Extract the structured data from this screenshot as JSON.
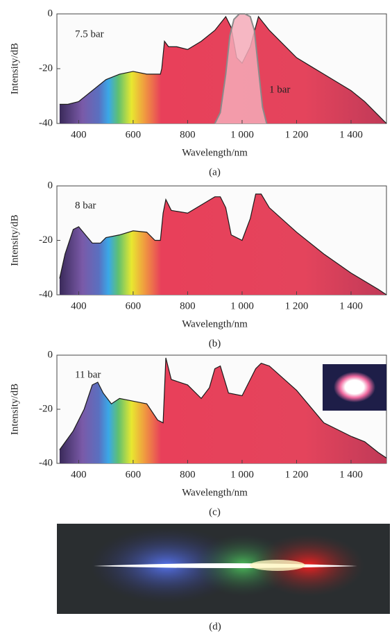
{
  "chart_data": [
    {
      "type": "area",
      "ylabel": "Intensity/dB",
      "xlabel": "Wavelength/nm",
      "caption": "(a)",
      "xlim": [
        320,
        1530
      ],
      "ylim": [
        -40,
        0
      ],
      "xticks": [
        400,
        600,
        800,
        {
          "value": 1000,
          "label": "1 000"
        },
        {
          "value": 1200,
          "label": "1 200"
        },
        {
          "value": 1400,
          "label": "1 400"
        }
      ],
      "yticks": [
        -40,
        -20,
        0
      ],
      "series": [
        {
          "name": "7.5 bar",
          "color": "#1a1a1a",
          "x": [
            330,
            360,
            400,
            450,
            500,
            550,
            600,
            650,
            700,
            705,
            715,
            730,
            760,
            800,
            850,
            900,
            940,
            960,
            980,
            1000,
            1030,
            1060,
            1100,
            1150,
            1200,
            1250,
            1300,
            1350,
            1400,
            1450,
            1500,
            1530
          ],
          "values": [
            -33,
            -33,
            -32,
            -28,
            -24,
            -22,
            -21,
            -22,
            -22,
            -20,
            -10,
            -12,
            -12,
            -13,
            -10,
            -6,
            -1,
            -5,
            -16,
            -18,
            -12,
            -1,
            -6,
            -11,
            -16,
            -19,
            -22,
            -25,
            -28,
            -32,
            -37,
            -40
          ]
        },
        {
          "name": "1 bar",
          "color": "#8a8a8a",
          "x": [
            900,
            920,
            940,
            955,
            970,
            990,
            1010,
            1030,
            1045,
            1060,
            1075,
            1090
          ],
          "values": [
            -40,
            -36,
            -22,
            -8,
            -2,
            0,
            0,
            -1,
            -6,
            -20,
            -34,
            -40
          ]
        }
      ]
    },
    {
      "type": "area",
      "ylabel": "Intensity/dB",
      "xlabel": "Wavelength/nm",
      "caption": "(b)",
      "xlim": [
        320,
        1530
      ],
      "ylim": [
        -40,
        0
      ],
      "xticks": [
        400,
        600,
        800,
        {
          "value": 1000,
          "label": "1 000"
        },
        {
          "value": 1200,
          "label": "1 200"
        },
        {
          "value": 1400,
          "label": "1 400"
        }
      ],
      "yticks": [
        -40,
        -20,
        0
      ],
      "series": [
        {
          "name": "8 bar",
          "color": "#1a1a1a",
          "x": [
            330,
            350,
            380,
            400,
            450,
            480,
            500,
            550,
            600,
            650,
            680,
            700,
            710,
            720,
            740,
            800,
            850,
            900,
            920,
            940,
            960,
            1000,
            1030,
            1050,
            1070,
            1100,
            1200,
            1300,
            1400,
            1500,
            1530
          ],
          "values": [
            -34,
            -25,
            -16,
            -15,
            -21,
            -21,
            -19,
            -18,
            -16.5,
            -17,
            -20,
            -20,
            -10,
            -5,
            -9,
            -10,
            -7,
            -4,
            -4,
            -8,
            -18,
            -20,
            -12,
            -3,
            -3,
            -8,
            -17,
            -25,
            -32,
            -38,
            -40
          ]
        }
      ]
    },
    {
      "type": "area",
      "ylabel": "Intensity/dB",
      "xlabel": "Wavelength/nm",
      "caption": "(c)",
      "xlim": [
        320,
        1530
      ],
      "ylim": [
        -40,
        0
      ],
      "xticks": [
        400,
        600,
        800,
        {
          "value": 1000,
          "label": "1 000"
        },
        {
          "value": 1200,
          "label": "1 200"
        },
        {
          "value": 1400,
          "label": "1 400"
        }
      ],
      "yticks": [
        -40,
        -20,
        0
      ],
      "series": [
        {
          "name": "11 bar",
          "color": "#1a1a1a",
          "x": [
            330,
            380,
            420,
            450,
            470,
            490,
            520,
            550,
            600,
            650,
            690,
            710,
            720,
            740,
            800,
            850,
            880,
            900,
            920,
            950,
            1000,
            1050,
            1070,
            1100,
            1200,
            1300,
            1400,
            1450,
            1500,
            1530
          ],
          "values": [
            -35,
            -28,
            -20,
            -11,
            -10,
            -14,
            -18,
            -16,
            -17,
            -18,
            -24,
            -25,
            -1,
            -9,
            -11,
            -16,
            -12,
            -5,
            -4,
            -14,
            -15,
            -5,
            -3,
            -4,
            -13,
            -25,
            -30,
            -32,
            -36,
            -38
          ]
        }
      ]
    }
  ],
  "photo": {
    "caption": "(d)"
  }
}
